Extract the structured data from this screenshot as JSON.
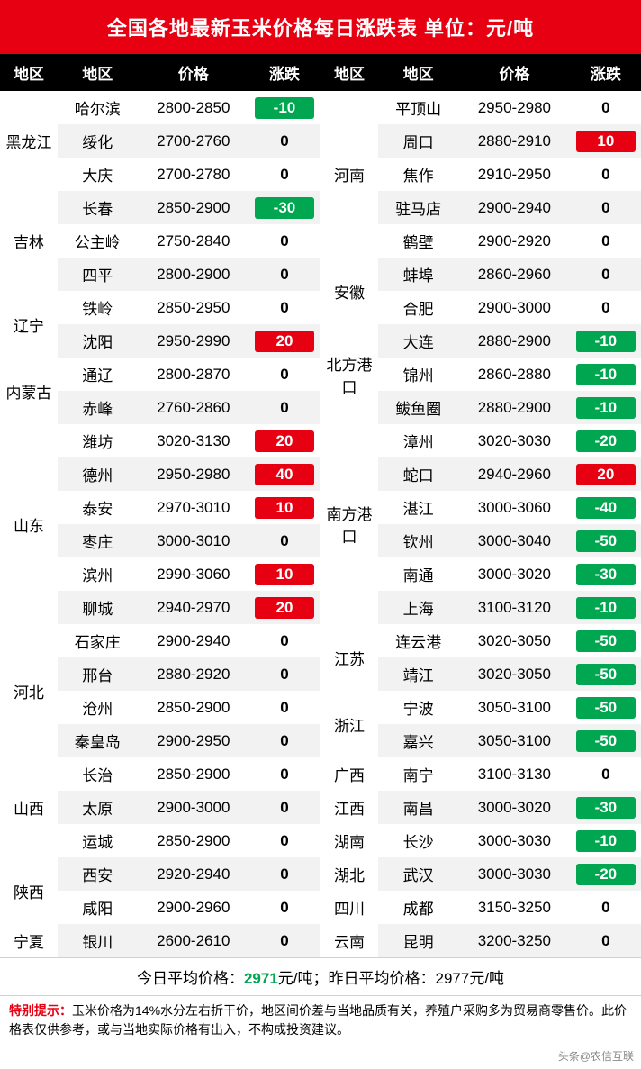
{
  "title": "全国各地最新玉米价格每日涨跌表   单位：元/吨",
  "headers": {
    "region": "地区",
    "price": "价格",
    "change": "涨跌"
  },
  "left": [
    [
      "黑龙江",
      3,
      "哈尔滨",
      "2800-2850",
      "-10"
    ],
    [
      "",
      0,
      "绥化",
      "2700-2760",
      "0"
    ],
    [
      "",
      0,
      "大庆",
      "2700-2780",
      "0"
    ],
    [
      "吉林",
      3,
      "长春",
      "2850-2900",
      "-30"
    ],
    [
      "",
      0,
      "公主岭",
      "2750-2840",
      "0"
    ],
    [
      "",
      0,
      "四平",
      "2800-2900",
      "0"
    ],
    [
      "辽宁",
      2,
      "铁岭",
      "2850-2950",
      "0"
    ],
    [
      "",
      0,
      "沈阳",
      "2950-2990",
      "20"
    ],
    [
      "内蒙古",
      2,
      "通辽",
      "2800-2870",
      "0"
    ],
    [
      "",
      0,
      "赤峰",
      "2760-2860",
      "0"
    ],
    [
      "山东",
      6,
      "潍坊",
      "3020-3130",
      "20"
    ],
    [
      "",
      0,
      "德州",
      "2950-2980",
      "40"
    ],
    [
      "",
      0,
      "泰安",
      "2970-3010",
      "10"
    ],
    [
      "",
      0,
      "枣庄",
      "3000-3010",
      "0"
    ],
    [
      "",
      0,
      "滨州",
      "2990-3060",
      "10"
    ],
    [
      "",
      0,
      "聊城",
      "2940-2970",
      "20"
    ],
    [
      "河北",
      4,
      "石家庄",
      "2900-2940",
      "0"
    ],
    [
      "",
      0,
      "邢台",
      "2880-2920",
      "0"
    ],
    [
      "",
      0,
      "沧州",
      "2850-2900",
      "0"
    ],
    [
      "",
      0,
      "秦皇岛",
      "2900-2950",
      "0"
    ],
    [
      "山西",
      3,
      "长治",
      "2850-2900",
      "0"
    ],
    [
      "",
      0,
      "太原",
      "2900-3000",
      "0"
    ],
    [
      "",
      0,
      "运城",
      "2850-2900",
      "0"
    ],
    [
      "陕西",
      2,
      "西安",
      "2920-2940",
      "0"
    ],
    [
      "",
      0,
      "咸阳",
      "2900-2960",
      "0"
    ],
    [
      "宁夏",
      1,
      "银川",
      "2600-2610",
      "0"
    ]
  ],
  "right": [
    [
      "河南",
      5,
      "平顶山",
      "2950-2980",
      "0"
    ],
    [
      "",
      0,
      "周口",
      "2880-2910",
      "10"
    ],
    [
      "",
      0,
      "焦作",
      "2910-2950",
      "0"
    ],
    [
      "",
      0,
      "驻马店",
      "2900-2940",
      "0"
    ],
    [
      "",
      0,
      "鹤壁",
      "2900-2920",
      "0"
    ],
    [
      "安徽",
      2,
      "蚌埠",
      "2860-2960",
      "0"
    ],
    [
      "",
      0,
      "合肥",
      "2900-3000",
      "0"
    ],
    [
      "北方港口",
      3,
      "大连",
      "2880-2900",
      "-10"
    ],
    [
      "",
      0,
      "锦州",
      "2860-2880",
      "-10"
    ],
    [
      "",
      0,
      "鲅鱼圈",
      "2880-2900",
      "-10"
    ],
    [
      "南方港口",
      6,
      "漳州",
      "3020-3030",
      "-20"
    ],
    [
      "",
      0,
      "蛇口",
      "2940-2960",
      "20"
    ],
    [
      "",
      0,
      "湛江",
      "3000-3060",
      "-40"
    ],
    [
      "",
      0,
      "钦州",
      "3000-3040",
      "-50"
    ],
    [
      "",
      0,
      "南通",
      "3000-3020",
      "-30"
    ],
    [
      "",
      0,
      "上海",
      "3100-3120",
      "-10"
    ],
    [
      "江苏",
      2,
      "连云港",
      "3020-3050",
      "-50"
    ],
    [
      "",
      0,
      "靖江",
      "3020-3050",
      "-50"
    ],
    [
      "浙江",
      2,
      "宁波",
      "3050-3100",
      "-50"
    ],
    [
      "",
      0,
      "嘉兴",
      "3050-3100",
      "-50"
    ],
    [
      "广西",
      1,
      "南宁",
      "3100-3130",
      "0"
    ],
    [
      "江西",
      1,
      "南昌",
      "3000-3020",
      "-30"
    ],
    [
      "湖南",
      1,
      "长沙",
      "3000-3030",
      "-10"
    ],
    [
      "湖北",
      1,
      "武汉",
      "3000-3030",
      "-20"
    ],
    [
      "四川",
      1,
      "成都",
      "3150-3250",
      "0"
    ],
    [
      "云南",
      1,
      "昆明",
      "3200-3250",
      "0"
    ]
  ],
  "summary_p1": "今日平均价格：",
  "summary_hl": "2971",
  "summary_p2": "元/吨；昨日平均价格：2977元/吨",
  "note_warn": "特别提示：",
  "note_body": "玉米价格为14%水分左右折干价，地区间价差与当地品质有关，养殖户采购多为贸易商零售价。此价格表仅供参考，或与当地实际价格有出入，不构成投资建议。",
  "source": "头条@农信互联"
}
